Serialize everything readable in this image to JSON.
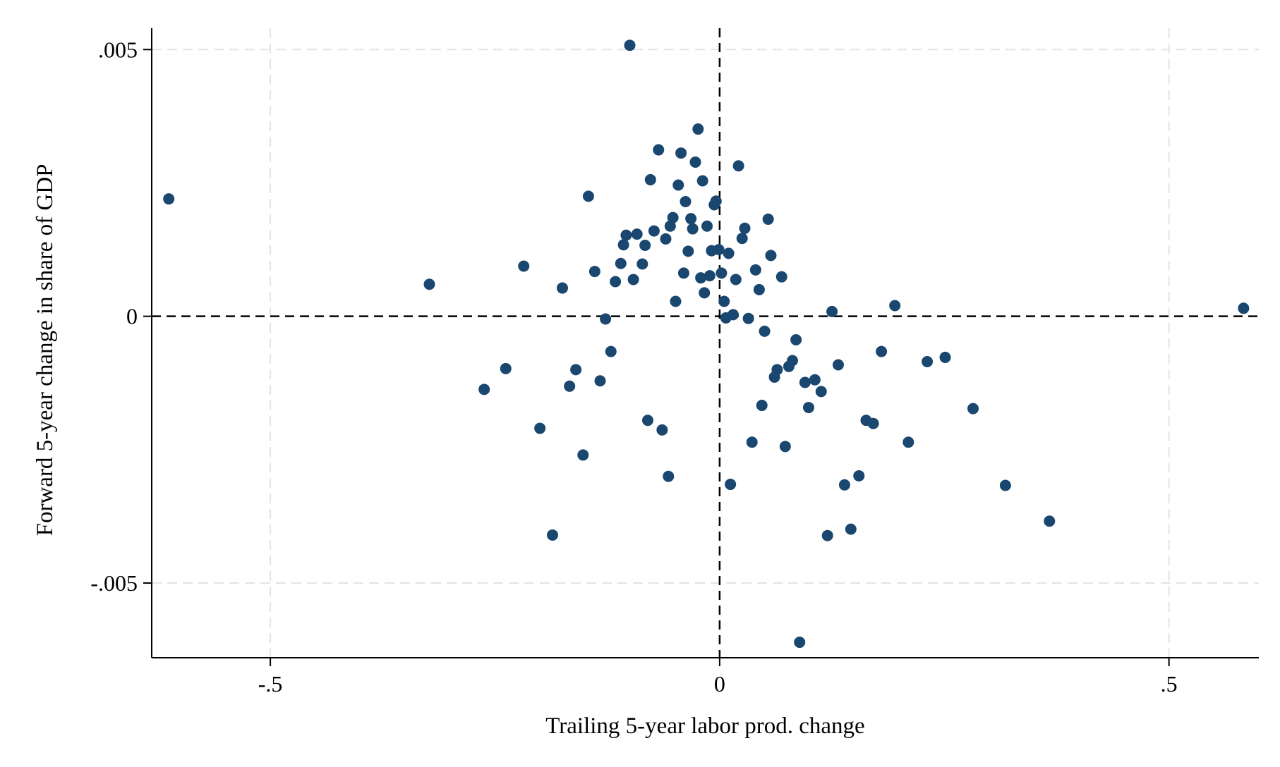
{
  "chart_data": {
    "type": "scatter",
    "title": "",
    "xlabel": "Trailing 5-year labor prod. change",
    "ylabel": "Forward 5-year change in share of GDP",
    "xlim": [
      -0.632,
      0.6
    ],
    "ylim": [
      -0.0064,
      0.0054
    ],
    "x_ticks": [
      {
        "value": -0.5,
        "label": "-.5"
      },
      {
        "value": 0,
        "label": "0"
      },
      {
        "value": 0.5,
        "label": ".5"
      }
    ],
    "y_ticks": [
      {
        "value": 0.005,
        "label": ".005"
      },
      {
        "value": 0,
        "label": "0"
      },
      {
        "value": -0.005,
        "label": "-.005"
      }
    ],
    "grid": true,
    "reference_lines": {
      "x": 0,
      "y": 0,
      "style": "dashed"
    },
    "marker_color": "#1a476f",
    "points": [
      [
        -0.613,
        0.0022
      ],
      [
        -0.323,
        0.0006
      ],
      [
        -0.262,
        -0.00137
      ],
      [
        -0.238,
        -0.00098
      ],
      [
        -0.218,
        0.00094
      ],
      [
        -0.2,
        -0.0021
      ],
      [
        -0.186,
        -0.0041
      ],
      [
        -0.175,
        0.00053
      ],
      [
        -0.167,
        -0.00131
      ],
      [
        -0.16,
        -0.001
      ],
      [
        -0.152,
        -0.0026
      ],
      [
        -0.146,
        0.00225
      ],
      [
        -0.139,
        0.00084
      ],
      [
        -0.133,
        -0.00121
      ],
      [
        -0.127,
        -5e-05
      ],
      [
        -0.121,
        -0.00066
      ],
      [
        -0.116,
        0.00065
      ],
      [
        -0.11,
        0.00099
      ],
      [
        -0.107,
        0.00134
      ],
      [
        -0.104,
        0.00152
      ],
      [
        -0.1,
        0.00508
      ],
      [
        -0.096,
        0.00069
      ],
      [
        -0.092,
        0.00154
      ],
      [
        -0.086,
        0.00098
      ],
      [
        -0.083,
        0.00133
      ],
      [
        -0.08,
        -0.00195
      ],
      [
        -0.077,
        0.00256
      ],
      [
        -0.073,
        0.0016
      ],
      [
        -0.068,
        0.00312
      ],
      [
        -0.064,
        -0.00213
      ],
      [
        -0.06,
        0.00145
      ],
      [
        -0.057,
        -0.003
      ],
      [
        -0.055,
        0.00169
      ],
      [
        -0.052,
        0.00185
      ],
      [
        -0.049,
        0.00028
      ],
      [
        -0.046,
        0.00246
      ],
      [
        -0.043,
        0.00306
      ],
      [
        -0.04,
        0.00081
      ],
      [
        -0.038,
        0.00215
      ],
      [
        -0.035,
        0.00122
      ],
      [
        -0.032,
        0.00183
      ],
      [
        -0.03,
        0.00164
      ],
      [
        -0.027,
        0.00289
      ],
      [
        -0.024,
        0.00351
      ],
      [
        -0.021,
        0.00072
      ],
      [
        -0.019,
        0.00254
      ],
      [
        -0.017,
        0.00044
      ],
      [
        -0.014,
        0.00169
      ],
      [
        -0.011,
        0.00076
      ],
      [
        -0.009,
        0.00123
      ],
      [
        -0.006,
        0.00209
      ],
      [
        -0.004,
        0.00216
      ],
      [
        -0.001,
        0.00125
      ],
      [
        0.002,
        0.00081
      ],
      [
        0.005,
        0.00028
      ],
      [
        0.007,
        -3e-05
      ],
      [
        0.01,
        0.00118
      ],
      [
        0.012,
        -0.00315
      ],
      [
        0.015,
        3e-05
      ],
      [
        0.018,
        0.00069
      ],
      [
        0.021,
        0.00282
      ],
      [
        0.025,
        0.00146
      ],
      [
        0.028,
        0.00165
      ],
      [
        0.032,
        -4e-05
      ],
      [
        0.036,
        -0.00236
      ],
      [
        0.04,
        0.00087
      ],
      [
        0.044,
        0.0005
      ],
      [
        0.047,
        -0.00167
      ],
      [
        0.05,
        -0.00028
      ],
      [
        0.054,
        0.00182
      ],
      [
        0.057,
        0.00114
      ],
      [
        0.061,
        -0.00114
      ],
      [
        0.064,
        -0.001
      ],
      [
        0.069,
        0.00074
      ],
      [
        0.073,
        -0.00244
      ],
      [
        0.077,
        -0.00094
      ],
      [
        0.081,
        -0.00083
      ],
      [
        0.085,
        -0.00044
      ],
      [
        0.089,
        -0.00611
      ],
      [
        0.095,
        -0.00124
      ],
      [
        0.099,
        -0.00171
      ],
      [
        0.106,
        -0.00119
      ],
      [
        0.113,
        -0.00141
      ],
      [
        0.12,
        -0.00411
      ],
      [
        0.125,
        9e-05
      ],
      [
        0.132,
        -0.00091
      ],
      [
        0.139,
        -0.00316
      ],
      [
        0.146,
        -0.00399
      ],
      [
        0.155,
        -0.00299
      ],
      [
        0.163,
        -0.00195
      ],
      [
        0.171,
        -0.00201
      ],
      [
        0.18,
        -0.00066
      ],
      [
        0.195,
        0.0002
      ],
      [
        0.21,
        -0.00236
      ],
      [
        0.231,
        -0.00085
      ],
      [
        0.251,
        -0.00077
      ],
      [
        0.282,
        -0.00173
      ],
      [
        0.318,
        -0.00317
      ],
      [
        0.367,
        -0.00384
      ],
      [
        0.583,
        0.00015
      ]
    ]
  }
}
